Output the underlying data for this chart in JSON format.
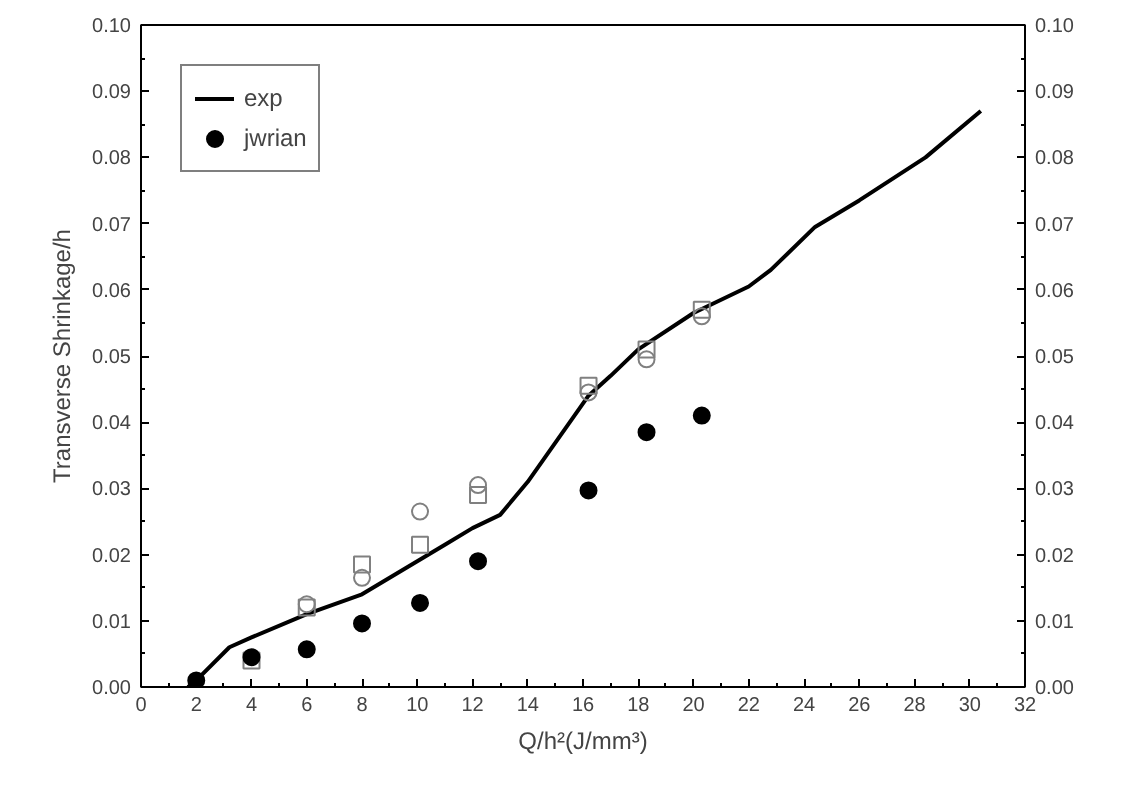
{
  "chart_data": {
    "type": "scatter",
    "xlabel": "Q/h²(J/mm³)",
    "ylabel": "Transverse Shrinkage/h",
    "xlim": [
      0,
      32
    ],
    "xticks": [
      0,
      2,
      4,
      6,
      8,
      10,
      12,
      14,
      16,
      18,
      20,
      22,
      24,
      26,
      28,
      30,
      32
    ],
    "ylim": [
      0,
      0.1
    ],
    "yticks": [
      {
        "value": 0,
        "label": "0.00"
      },
      {
        "value": 0.01,
        "label": "0.01"
      },
      {
        "value": 0.02,
        "label": "0.02"
      },
      {
        "value": 0.03,
        "label": "0.03"
      },
      {
        "value": 0.04,
        "label": "0.04"
      },
      {
        "value": 0.05,
        "label": "0.05"
      },
      {
        "value": 0.06,
        "label": "0.06"
      },
      {
        "value": 0.07,
        "label": "0.07"
      },
      {
        "value": 0.08,
        "label": "0.08"
      },
      {
        "value": 0.09,
        "label": "0.09"
      },
      {
        "value": 0.1,
        "label": "0.10"
      }
    ],
    "y2lim": [
      0,
      0.1
    ],
    "y2ticks": [
      {
        "value": 0,
        "label": "0.00"
      },
      {
        "value": 0.01,
        "label": "0.01"
      },
      {
        "value": 0.02,
        "label": "0.02"
      },
      {
        "value": 0.03,
        "label": "0.03"
      },
      {
        "value": 0.04,
        "label": "0.04"
      },
      {
        "value": 0.05,
        "label": "0.05"
      },
      {
        "value": 0.06,
        "label": "0.06"
      },
      {
        "value": 0.07,
        "label": "0.07"
      },
      {
        "value": 0.08,
        "label": "0.08"
      },
      {
        "value": 0.09,
        "label": "0.09"
      },
      {
        "value": 0.1,
        "label": "0.10"
      }
    ],
    "grid": false,
    "legend": "top left",
    "series": [
      {
        "name": "exp",
        "type": "line",
        "marker": "none",
        "color": "#000000",
        "x": [
          1.7,
          2,
          3.2,
          4,
          6,
          8,
          10,
          11,
          12,
          13,
          14,
          16.2,
          17,
          18,
          20,
          22,
          22.8,
          24.4,
          26,
          28.4,
          30.4
        ],
        "values": [
          0,
          0.001,
          0.006,
          0.0075,
          0.011,
          0.014,
          0.019,
          0.0215,
          0.024,
          0.026,
          0.031,
          0.044,
          0.047,
          0.051,
          0.0565,
          0.0605,
          0.063,
          0.0695,
          0.0735,
          0.08,
          0.087
        ]
      },
      {
        "marker": "square",
        "color": "#808080",
        "x": [
          4,
          6,
          8,
          10.1,
          12.2,
          16.2,
          18.3,
          20.3
        ],
        "values": [
          0.004,
          0.012,
          0.0185,
          0.0215,
          0.029,
          0.0455,
          0.051,
          0.057
        ]
      },
      {
        "marker": "circle",
        "color": "#808080",
        "x": [
          6,
          8,
          10.1,
          12.2,
          16.2,
          18.3,
          20.3
        ],
        "values": [
          0.0125,
          0.0165,
          0.0265,
          0.0305,
          0.0445,
          0.0495,
          0.056
        ]
      },
      {
        "name": "jwrian",
        "type": "scatter",
        "marker": "circle_filled",
        "color": "#000000",
        "x": [
          2,
          4,
          6,
          8,
          10.1,
          12.2,
          16.2,
          18.3,
          20.3
        ],
        "values": [
          0.001,
          0.0045,
          0.0057,
          0.0096,
          0.0127,
          0.019,
          0.0297,
          0.0385,
          0.041
        ]
      }
    ]
  }
}
